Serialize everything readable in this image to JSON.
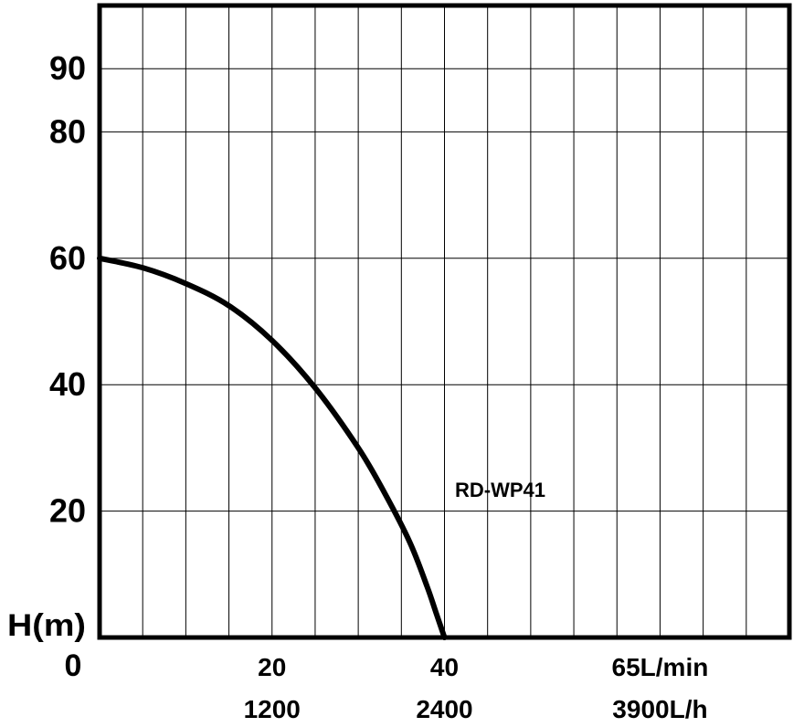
{
  "chart_data": {
    "type": "line",
    "annotation": "RD-WP41",
    "ylabel": "H(m)",
    "xlim": [
      0,
      80
    ],
    "ylim": [
      0,
      100
    ],
    "grid": true,
    "x_ticks": [
      {
        "x": 0,
        "label": "0",
        "label2": ""
      },
      {
        "x": 20,
        "label": "20",
        "label2": "1200"
      },
      {
        "x": 40,
        "label": "40",
        "label2": "2400"
      },
      {
        "x": 65,
        "label": "65L/min",
        "label2": "3900L/h"
      }
    ],
    "y_ticks": [
      {
        "y": 20,
        "label": "20"
      },
      {
        "y": 40,
        "label": "40"
      },
      {
        "y": 60,
        "label": "60"
      },
      {
        "y": 80,
        "label": "80"
      },
      {
        "y": 90,
        "label": "90"
      }
    ],
    "series": [
      {
        "x": [
          0,
          5,
          10,
          15,
          20,
          25,
          30,
          33,
          36,
          38,
          39,
          40
        ],
        "y": [
          60,
          58.5,
          56,
          52.5,
          47,
          39.5,
          30,
          23,
          15,
          8,
          4,
          0
        ]
      }
    ]
  }
}
